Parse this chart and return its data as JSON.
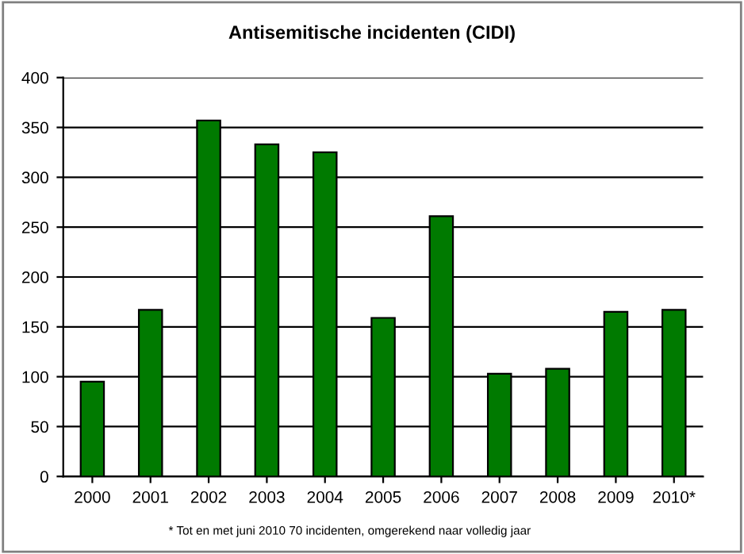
{
  "chart_data": {
    "type": "bar",
    "title": "Antisemitische incidenten (CIDI)",
    "categories": [
      "2000",
      "2001",
      "2002",
      "2003",
      "2004",
      "2005",
      "2006",
      "2007",
      "2008",
      "2009",
      "2010*"
    ],
    "values": [
      95,
      167,
      357,
      333,
      325,
      159,
      261,
      103,
      108,
      165,
      167
    ],
    "color": "#007a00",
    "ylim": [
      0,
      400
    ],
    "yticks": [
      0,
      50,
      100,
      150,
      200,
      250,
      300,
      350,
      400
    ],
    "grid": "y",
    "annotations": [
      "* Tot en met juni 2010 70 incidenten, omgerekend naar volledig jaar"
    ]
  }
}
